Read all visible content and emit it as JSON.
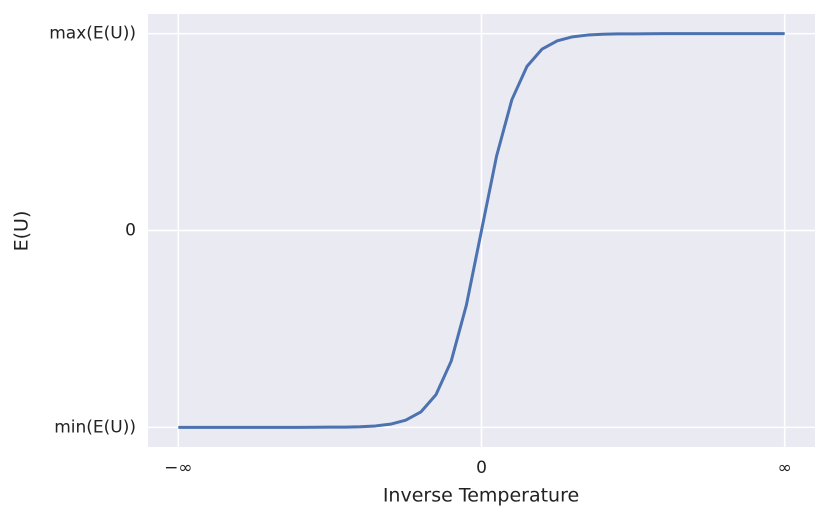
{
  "chart_data": {
    "type": "line",
    "xlabel": "Inverse Temperature",
    "ylabel": "E(U)",
    "x": [
      -1,
      -0.9,
      -0.8,
      -0.7,
      -0.6,
      -0.5,
      -0.45,
      -0.4,
      -0.35,
      -0.3,
      -0.25,
      -0.2,
      -0.15,
      -0.1,
      -0.05,
      0,
      0.05,
      0.1,
      0.15,
      0.2,
      0.25,
      0.3,
      0.35,
      0.4,
      0.45,
      0.5,
      0.6,
      0.7,
      0.8,
      0.9,
      1
    ],
    "values": [
      -1,
      -1,
      -1,
      -1,
      -1,
      -0.999,
      -0.999,
      -0.997,
      -0.993,
      -0.984,
      -0.964,
      -0.922,
      -0.834,
      -0.664,
      -0.38,
      0,
      0.38,
      0.664,
      0.834,
      0.922,
      0.964,
      0.984,
      0.993,
      0.997,
      0.999,
      0.999,
      1,
      1,
      1,
      1,
      1
    ],
    "color": "#4c72b0",
    "xlim": [
      -1.1,
      1.1
    ],
    "ylim": [
      -1.1,
      1.1
    ],
    "xticks": [
      {
        "value": -1,
        "label": "−∞"
      },
      0,
      {
        "value": 1,
        "label": "∞"
      }
    ],
    "yticks": [
      {
        "value": -1,
        "label": "min(E(U))"
      },
      0,
      {
        "value": 1,
        "label": "max(E(U))"
      }
    ],
    "grid": true
  }
}
